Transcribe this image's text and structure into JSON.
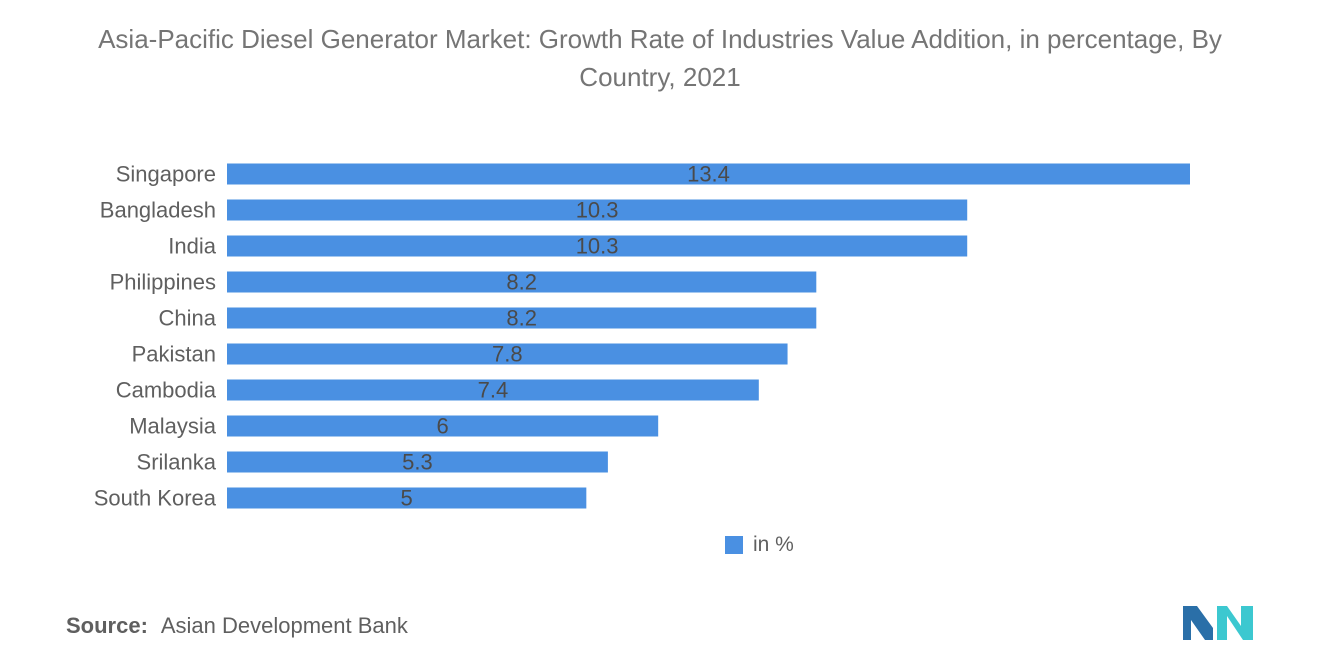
{
  "chart_data": {
    "type": "bar",
    "orientation": "horizontal",
    "title": "Asia-Pacific Diesel Generator Market: Growth Rate of Industries Value Addition, in percentage, By Country, 2021",
    "categories": [
      "Singapore",
      "Bangladesh",
      "India",
      "Philippines",
      "China",
      "Pakistan",
      "Cambodia",
      "Malaysia",
      "Srilanka",
      "South Korea"
    ],
    "values": [
      13.4,
      10.3,
      10.3,
      8.2,
      8.2,
      7.8,
      7.4,
      6,
      5.3,
      5
    ],
    "value_labels": [
      "13.4",
      "10.3",
      "10.3",
      "8.2",
      "8.2",
      "7.8",
      "7.4",
      "6",
      "5.3",
      "5"
    ],
    "legend": "in %",
    "legend_position": "bottom-center",
    "xlim": [
      0,
      13.4
    ],
    "grid": false,
    "bar_color": "#4a90e2"
  },
  "source": {
    "label": "Source:",
    "text": "Asian Development Bank"
  },
  "logo": {
    "icon": "mordor-intelligence-logo-icon",
    "color_left": "#2a6fa8",
    "color_right": "#3cc8d0"
  }
}
